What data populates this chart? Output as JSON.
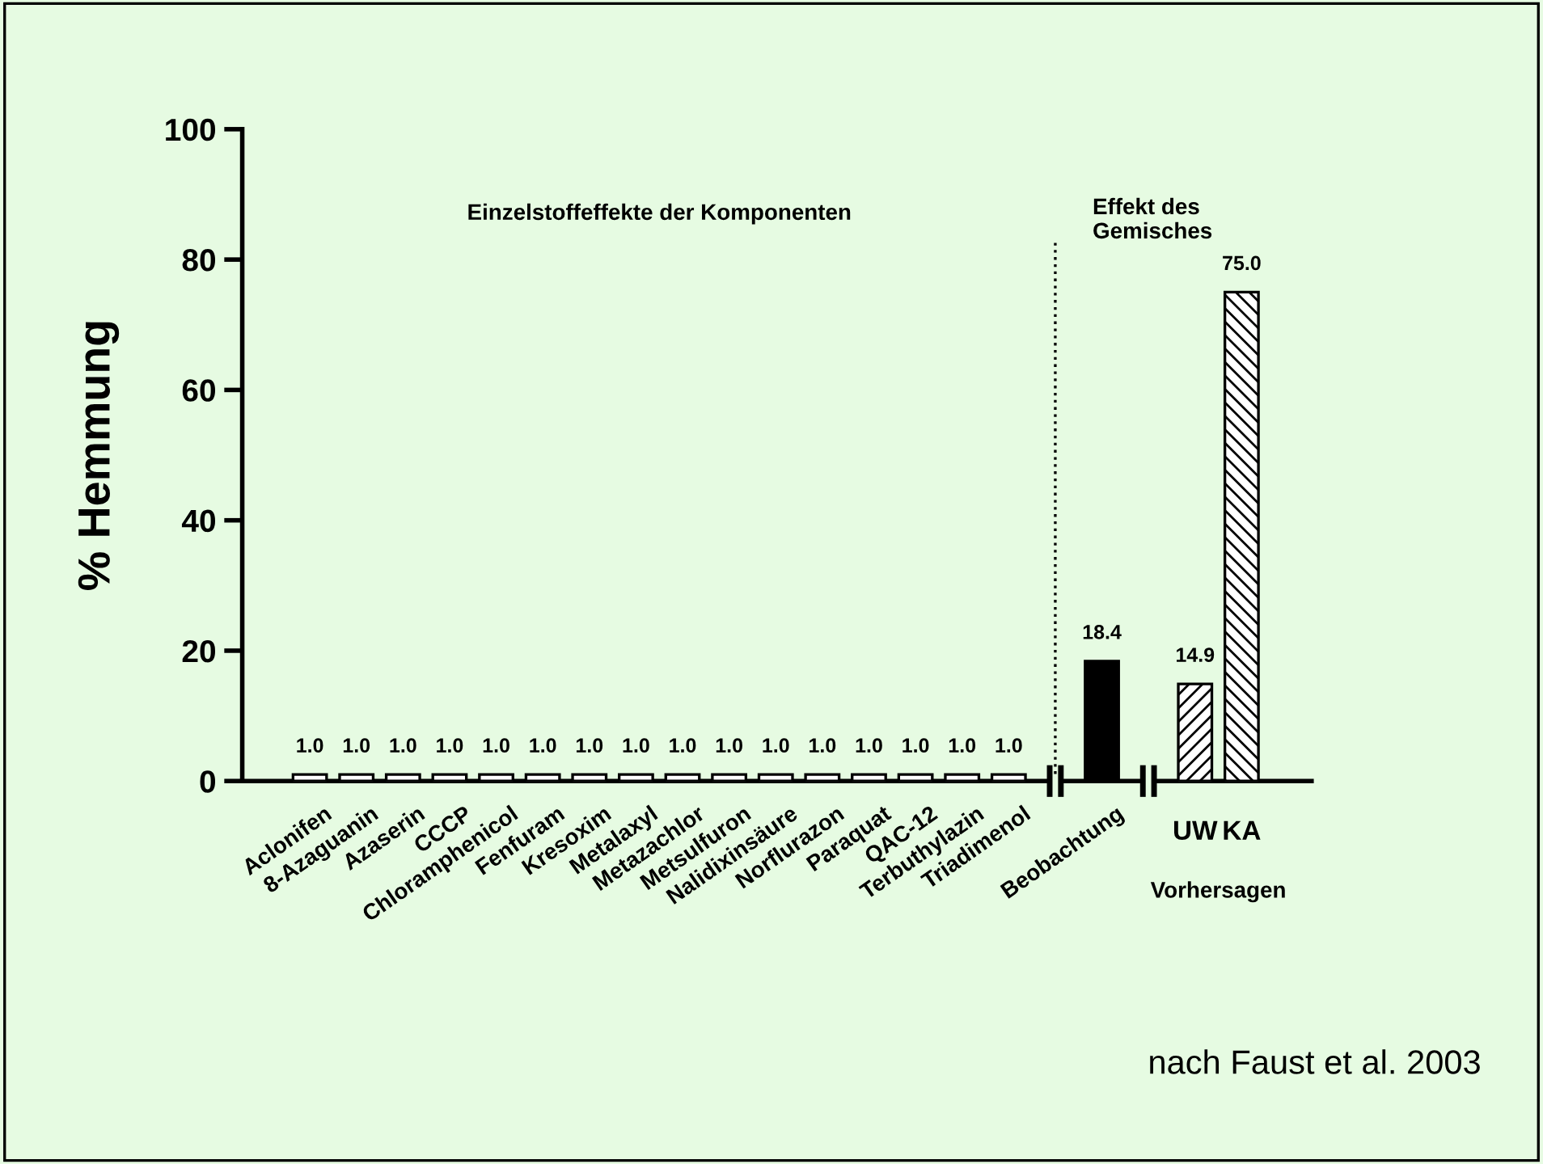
{
  "chart_data": {
    "type": "bar",
    "ylabel": "% Hemmung",
    "categories": [
      "Aclonifen",
      "8-Azaguanin",
      "Azaserin",
      "CCCP",
      "Chloramphenicol",
      "Fenfuram",
      "Kresoxim",
      "Metalaxyl",
      "Metazachlor",
      "Metsulfuron",
      "Nalidixinsäure",
      "Norflurazon",
      "Paraquat",
      "QAC-12",
      "Terbuthylazin",
      "Triadimenol",
      null,
      "Beobachtung",
      null,
      "UW",
      "KA"
    ],
    "values": [
      1.0,
      1.0,
      1.0,
      1.0,
      1.0,
      1.0,
      1.0,
      1.0,
      1.0,
      1.0,
      1.0,
      1.0,
      1.0,
      1.0,
      1.0,
      1.0,
      null,
      18.4,
      null,
      14.9,
      75.0
    ],
    "colors": [
      "#ffffff",
      "#ffffff",
      "#ffffff",
      "#ffffff",
      "#ffffff",
      "#ffffff",
      "#ffffff",
      "#ffffff",
      "#ffffff",
      "#ffffff",
      "#ffffff",
      "#ffffff",
      "#ffffff",
      "#ffffff",
      "#ffffff",
      "#ffffff",
      null,
      "#000000",
      null,
      "#ffffff",
      "#ffffff"
    ],
    "value_labels": [
      "1.0",
      "1.0",
      "1.0",
      "1.0",
      "1.0",
      "1.0",
      "1.0",
      "1.0",
      "1.0",
      "1.0",
      "1.0",
      "1.0",
      "1.0",
      "1.0",
      "1.0",
      "1.0",
      null,
      "18.4",
      null,
      "14.9",
      "75.0"
    ],
    "ylim": [
      0,
      100
    ],
    "yticks": [
      0,
      20,
      40,
      60,
      80,
      100
    ],
    "grid": false,
    "annotations": [
      "Einzelstoffeffekte der Komponenten",
      "Effekt des\nGemisches",
      "Vorhersagen",
      "nach Faust et al. 2003"
    ]
  }
}
